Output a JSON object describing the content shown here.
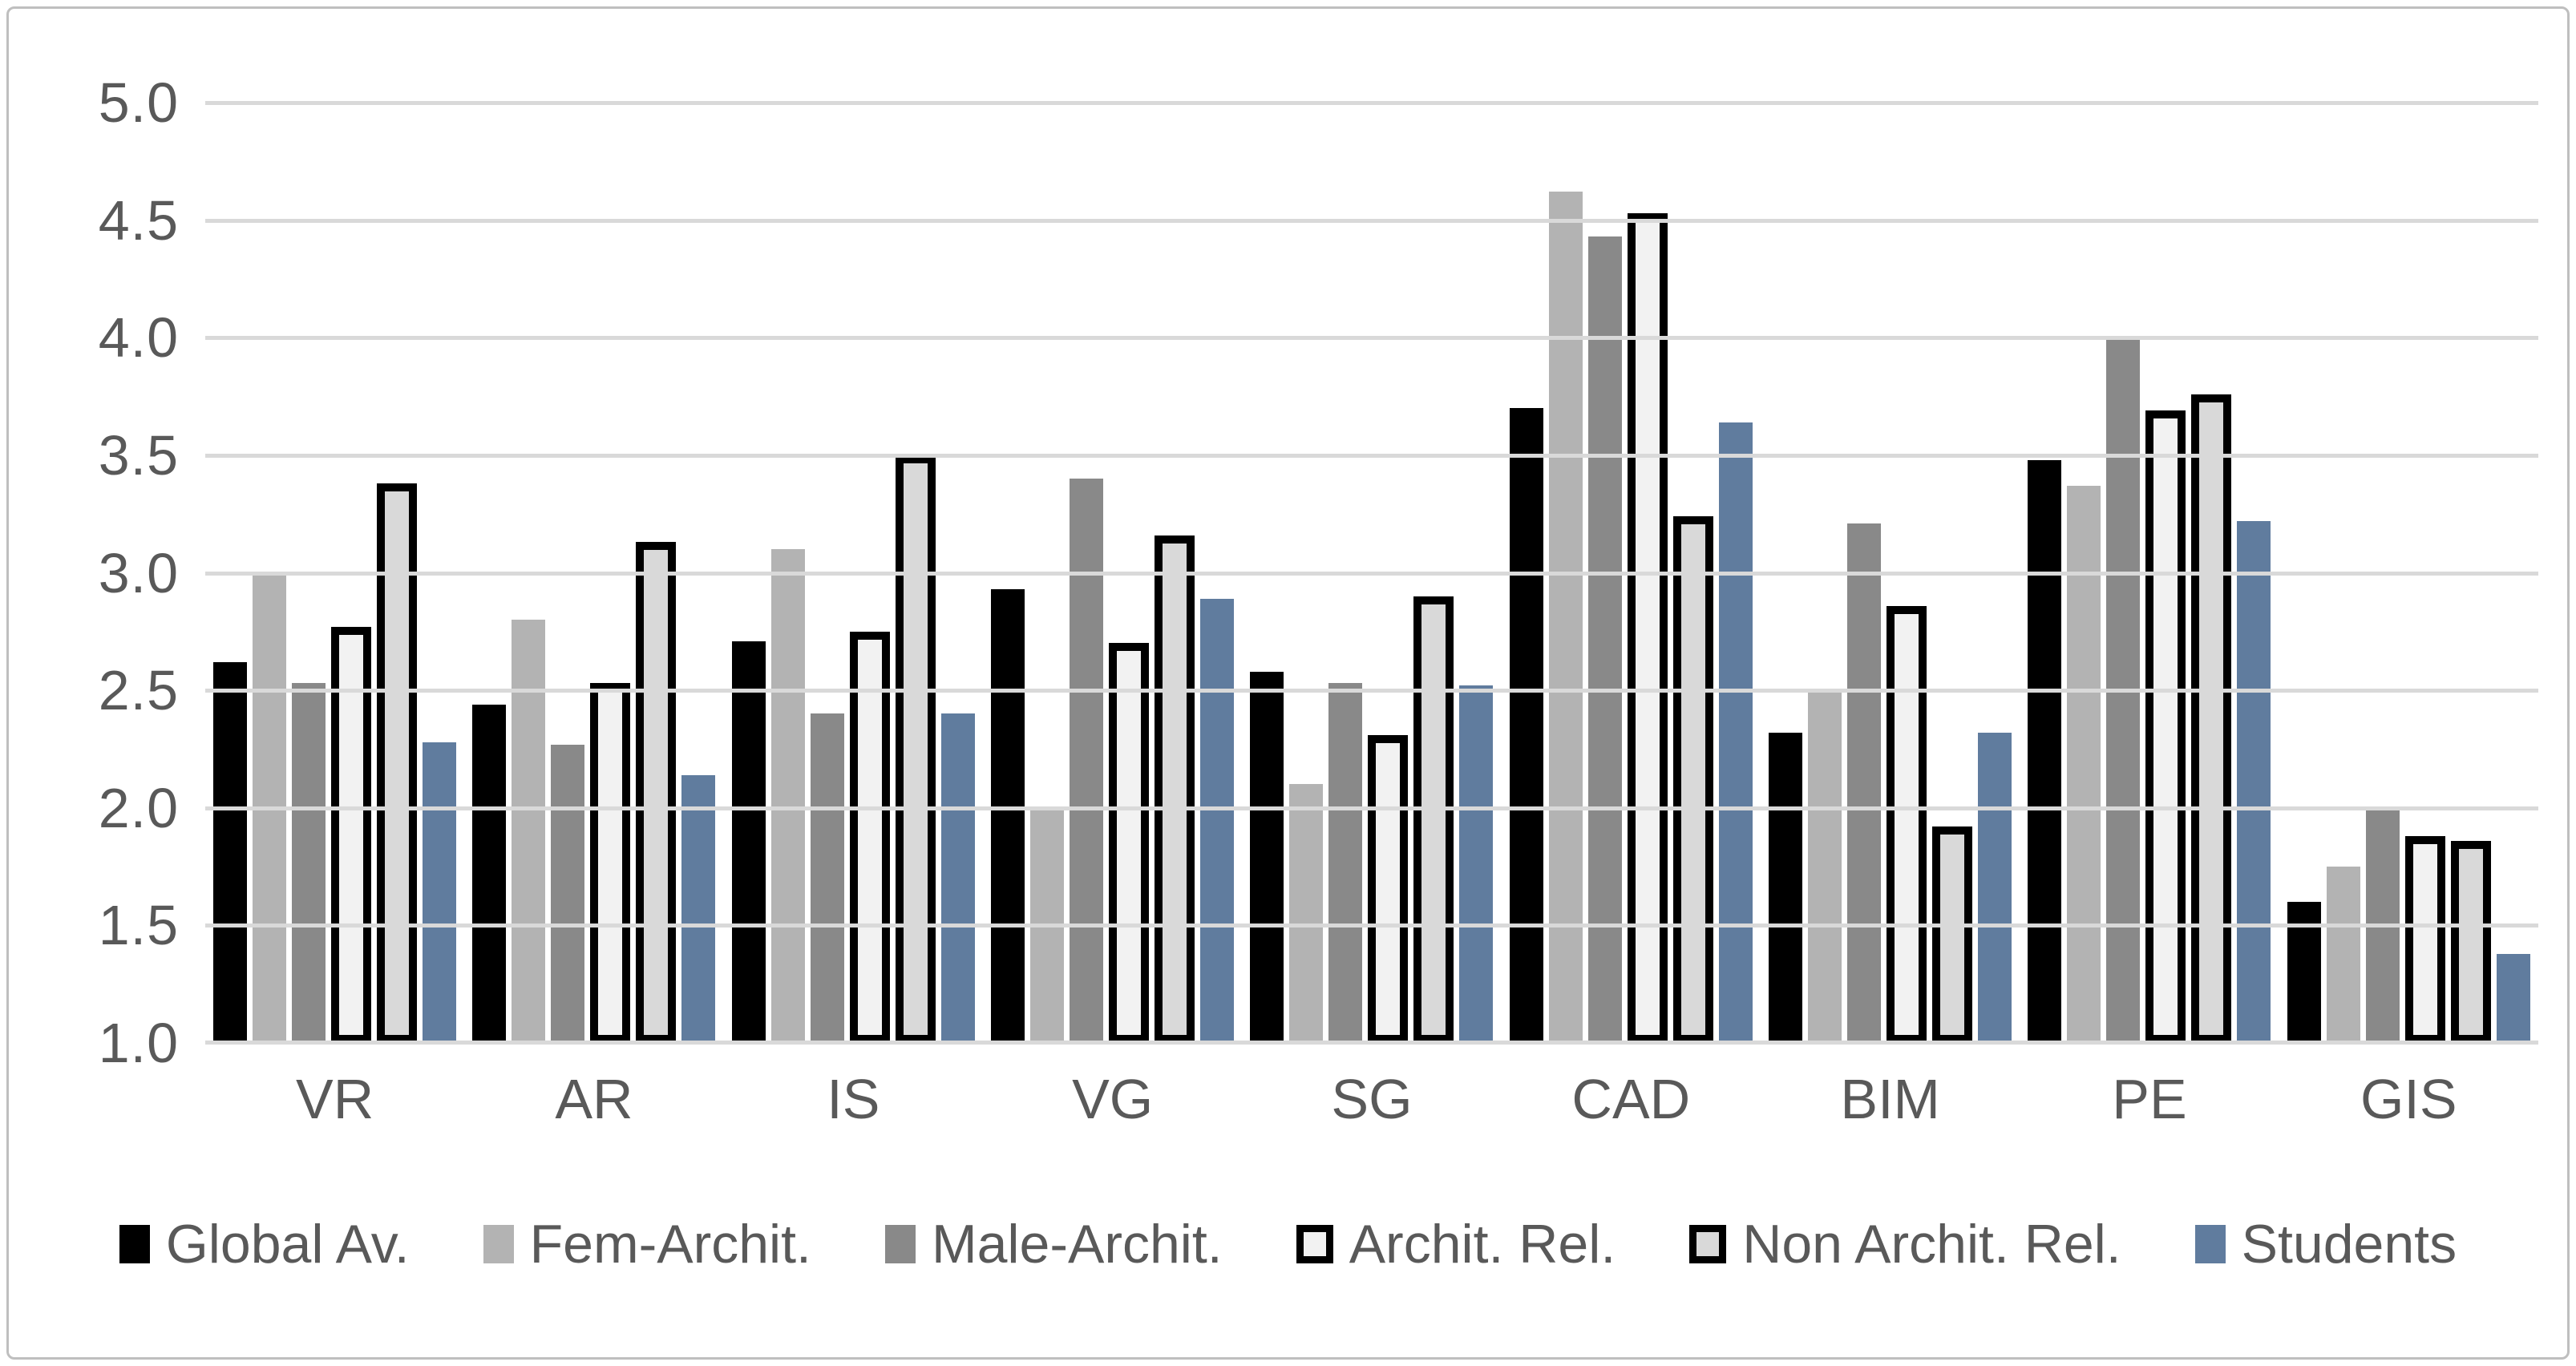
{
  "figure": {
    "background": "#ffffff",
    "border_color": "#bfbfbf"
  },
  "chart_data": {
    "type": "bar",
    "title": "",
    "xlabel": "",
    "ylabel": "",
    "categories": [
      "VR",
      "AR",
      "IS",
      "VG",
      "SG",
      "CAD",
      "BIM",
      "PE",
      "GIS"
    ],
    "series": [
      {
        "name": "Global Av.",
        "color": "#000000",
        "border": false,
        "values": [
          2.62,
          2.44,
          2.71,
          2.93,
          2.58,
          3.7,
          2.32,
          3.48,
          1.6
        ]
      },
      {
        "name": "Fem-Archit.",
        "color": "#b3b3b3",
        "border": false,
        "values": [
          3.0,
          2.8,
          3.1,
          2.0,
          2.1,
          4.62,
          2.5,
          3.37,
          1.75
        ]
      },
      {
        "name": "Male-Archit.",
        "color": "#898989",
        "border": false,
        "values": [
          2.53,
          2.27,
          2.4,
          3.4,
          2.53,
          4.43,
          3.21,
          4.0,
          2.0
        ]
      },
      {
        "name": "Archit. Rel.",
        "color": "#f2f2f2",
        "border": true,
        "values": [
          2.77,
          2.53,
          2.75,
          2.7,
          2.31,
          4.53,
          2.86,
          3.69,
          1.88
        ]
      },
      {
        "name": "Non Archit. Rel.",
        "color": "#d9d9d9",
        "border": true,
        "values": [
          3.38,
          3.13,
          3.5,
          3.16,
          2.9,
          3.24,
          1.92,
          3.76,
          1.86
        ]
      },
      {
        "name": "Students",
        "color": "#607c9e",
        "border": false,
        "values": [
          2.28,
          2.14,
          2.4,
          2.89,
          2.52,
          3.64,
          2.32,
          3.22,
          1.38
        ]
      }
    ],
    "y_axis": {
      "min": 1.0,
      "max": 5.0,
      "step": 0.5,
      "tick_labels": [
        "5.0",
        "4.5",
        "4.0",
        "3.5",
        "3.0",
        "2.5",
        "2.0",
        "1.5",
        "1.0"
      ]
    },
    "grid": true,
    "gridline_color": "#d9d9d9",
    "text_color": "#595959",
    "legend_position": "bottom"
  }
}
